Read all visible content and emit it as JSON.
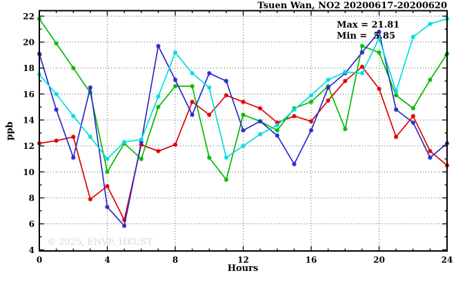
{
  "annotation": {
    "max_label": "Max = 21.81",
    "min_label": "Min =  5.85"
  },
  "watermark": "© 2025, ENVF, HKUST",
  "colors": {
    "red": "#dd0000",
    "green": "#00bb00",
    "blue": "#2a2ac8",
    "cyan": "#00dddd",
    "grid": "#000000",
    "watermark_gray": "#d7d7d7"
  },
  "chart_data": {
    "type": "line",
    "title": "Tsuen Wan, NO2 20200617-20200620",
    "xlabel": "Hours",
    "ylabel": "ppb",
    "xlim": [
      0,
      24
    ],
    "ylim": [
      4,
      22
    ],
    "xticks": [
      0,
      4,
      8,
      12,
      16,
      20,
      24
    ],
    "yticks": [
      4,
      6,
      8,
      10,
      12,
      14,
      16,
      18,
      20,
      22
    ],
    "grid": true,
    "legend": "none",
    "marker": "star",
    "x": [
      0,
      1,
      2,
      3,
      4,
      5,
      6,
      7,
      8,
      9,
      10,
      11,
      12,
      13,
      14,
      15,
      16,
      17,
      18,
      19,
      20,
      21,
      22,
      23,
      24
    ],
    "series": [
      {
        "name": "red",
        "values": [
          12.2,
          12.4,
          12.7,
          7.9,
          8.9,
          6.3,
          12.1,
          11.6,
          12.1,
          15.4,
          14.4,
          15.9,
          15.4,
          14.9,
          13.8,
          14.3,
          13.9,
          15.5,
          17.0,
          18.1,
          16.4,
          12.7,
          14.3,
          11.6,
          10.5
        ]
      },
      {
        "name": "green",
        "values": [
          21.8,
          19.9,
          18.0,
          16.1,
          10.0,
          12.2,
          11.0,
          15.0,
          16.6,
          16.6,
          11.1,
          9.4,
          14.4,
          13.9,
          13.2,
          14.9,
          15.4,
          16.6,
          13.3,
          19.7,
          19.2,
          15.9,
          14.9,
          17.1,
          19.1
        ]
      },
      {
        "name": "blue",
        "values": [
          19.1,
          14.8,
          11.1,
          16.5,
          7.3,
          5.85,
          12.3,
          19.7,
          17.1,
          14.4,
          17.6,
          17.0,
          13.2,
          13.9,
          12.8,
          10.6,
          13.2,
          16.5,
          17.6,
          19.2,
          20.8,
          14.8,
          13.8,
          11.1,
          12.2
        ]
      },
      {
        "name": "cyan",
        "values": [
          17.5,
          16.0,
          14.3,
          12.7,
          11.0,
          12.3,
          12.5,
          15.8,
          19.2,
          17.6,
          16.5,
          11.1,
          12.0,
          12.9,
          13.6,
          14.8,
          15.9,
          17.1,
          17.7,
          17.6,
          20.3,
          16.2,
          20.4,
          21.4,
          21.8
        ]
      }
    ],
    "annotations": [
      {
        "text": "Max = 21.81"
      },
      {
        "text": "Min =  5.85"
      }
    ]
  }
}
